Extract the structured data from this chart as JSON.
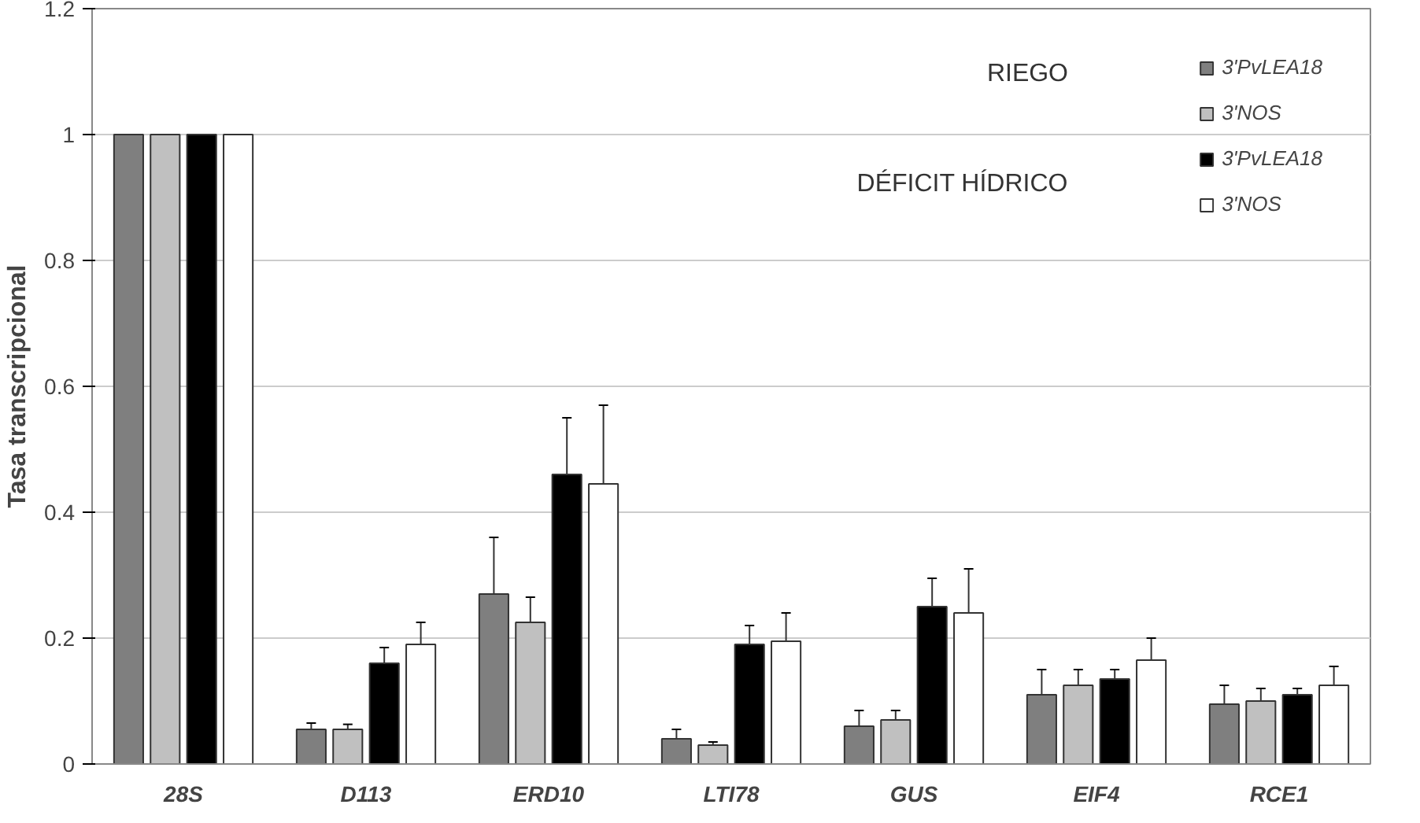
{
  "chart_data": {
    "type": "bar",
    "ylabel": "Tasa transcripcional",
    "categories": [
      "28S",
      "D113",
      "ERD10",
      "LTI78",
      "GUS",
      "EIF4",
      "RCE1"
    ],
    "series": [
      {
        "name": "3'PvLEA18",
        "color": "#7f7f7f",
        "values": [
          1,
          0.055,
          0.27,
          0.04,
          0.06,
          0.11,
          0.095
        ],
        "errors": [
          null,
          0.01,
          0.09,
          0.015,
          0.025,
          0.04,
          0.03
        ]
      },
      {
        "name": "3'NOS",
        "color": "#c0c0c0",
        "values": [
          1,
          0.055,
          0.225,
          0.03,
          0.07,
          0.125,
          0.1
        ],
        "errors": [
          null,
          0.008,
          0.04,
          0.005,
          0.015,
          0.025,
          0.02
        ]
      },
      {
        "name": "3'PvLEA18",
        "color": "#000000",
        "values": [
          1,
          0.16,
          0.46,
          0.19,
          0.25,
          0.135,
          0.11
        ],
        "errors": [
          null,
          0.025,
          0.09,
          0.03,
          0.045,
          0.015,
          0.01
        ]
      },
      {
        "name": "3'NOS",
        "color": "#ffffff",
        "values": [
          1,
          0.19,
          0.445,
          0.195,
          0.24,
          0.165,
          0.125
        ],
        "errors": [
          null,
          0.035,
          0.125,
          0.045,
          0.07,
          0.035,
          0.03
        ]
      }
    ],
    "annotations": [
      "RIEGO",
      "DÉFICIT HÍDRICO"
    ],
    "ylim": [
      0,
      1.2
    ],
    "yticks": [
      0,
      {
        "value": 0.2,
        "label": "0.2"
      },
      {
        "value": 0.4,
        "label": "0.4"
      },
      {
        "value": 0.6,
        "label": "0.6"
      },
      {
        "value": 0.8,
        "label": "0.8"
      },
      1,
      {
        "value": 1.2,
        "label": "1.2"
      }
    ],
    "grid": "y",
    "legend": "top right"
  }
}
